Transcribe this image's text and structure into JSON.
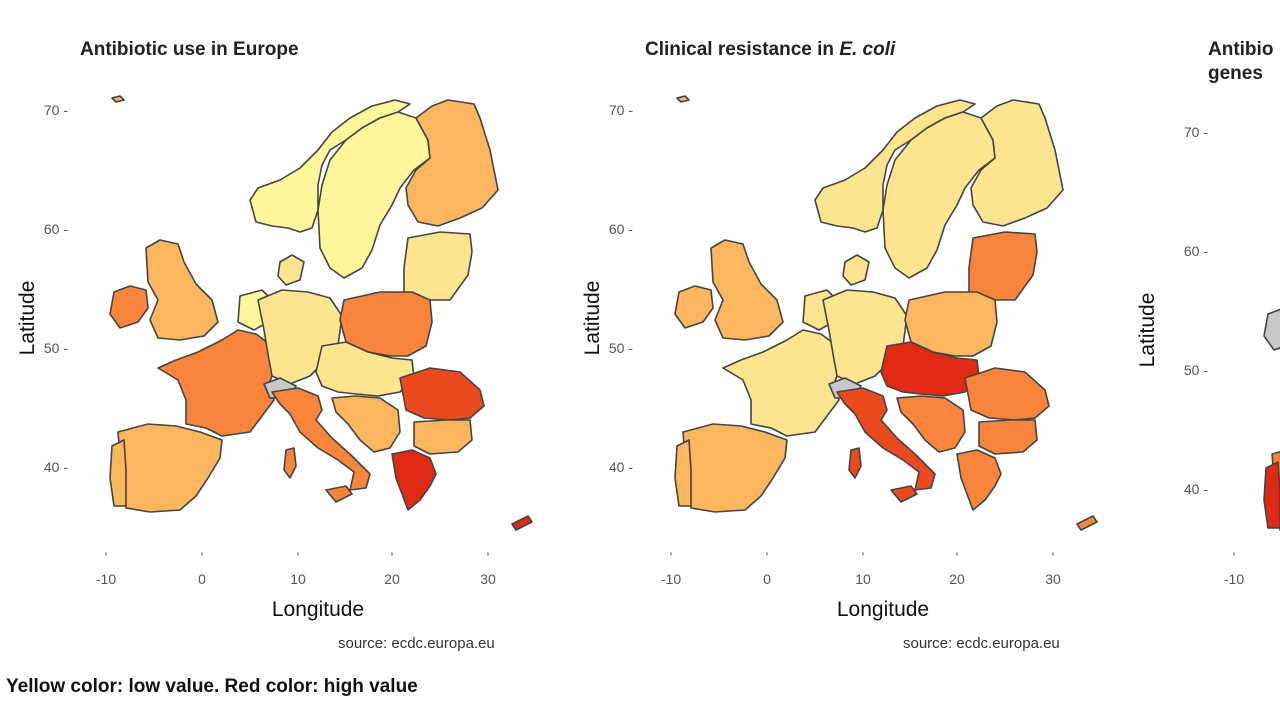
{
  "colors": {
    "very_low": "#fff59a",
    "low": "#fde48f",
    "mid": "#fbb65e",
    "high": "#f8853b",
    "very_high": "#ea4a1e",
    "max": "#e02a13",
    "no_data": "#c8c8c8",
    "border": "#444444"
  },
  "panels": [
    {
      "title": "Antibiotic use in Europe",
      "title_italic": "",
      "xlabel": "Longitude",
      "ylabel": "Latitude",
      "xticks": [
        "-10",
        "0",
        "10",
        "20",
        "30"
      ],
      "yticks": [
        "70",
        "60",
        "50",
        "40"
      ],
      "source": "source: ecdc.europa.eu",
      "country_levels": {
        "norway": "very_low",
        "sweden": "very_low",
        "finland": "mid",
        "uk": "mid",
        "ireland": "high",
        "iceland": "mid",
        "france": "high",
        "spain": "mid",
        "portugal": "mid",
        "germany": "low",
        "poland": "high",
        "italy": "high",
        "romania": "very_high",
        "greece": "max",
        "bulgaria": "mid",
        "denmark": "low",
        "baltics": "low",
        "benelux": "very_low",
        "centraleurope": "low",
        "switzerland": "no_data",
        "balkans": "mid"
      }
    },
    {
      "title": "Clinical resistance in ",
      "title_italic": "E. coli",
      "xlabel": "Longitude",
      "ylabel": "Latitude",
      "xticks": [
        "-10",
        "0",
        "10",
        "20",
        "30"
      ],
      "yticks": [
        "70",
        "60",
        "50",
        "40"
      ],
      "source": "source: ecdc.europa.eu",
      "country_levels": {
        "norway": "low",
        "sweden": "low",
        "finland": "low",
        "uk": "mid",
        "ireland": "mid",
        "iceland": "mid",
        "france": "low",
        "spain": "mid",
        "portugal": "mid",
        "germany": "low",
        "poland": "mid",
        "italy": "very_high",
        "romania": "high",
        "greece": "high",
        "bulgaria": "high",
        "denmark": "low",
        "baltics": "high",
        "benelux": "low",
        "centraleurope": "max",
        "switzerland": "no_data",
        "balkans": "high"
      }
    },
    {
      "title": "Antibio",
      "title_line2": "genes",
      "title_italic": "",
      "xlabel": "",
      "ylabel": "Latitude",
      "xticks": [
        "-10"
      ],
      "yticks": [
        "70",
        "60",
        "50",
        "40"
      ],
      "source": "",
      "country_levels": {
        "ireland": "no_data",
        "uk": "no_data",
        "spain": "high",
        "portugal": "max"
      }
    }
  ],
  "footer_note": "Yellow color: low value. Red color: high value"
}
